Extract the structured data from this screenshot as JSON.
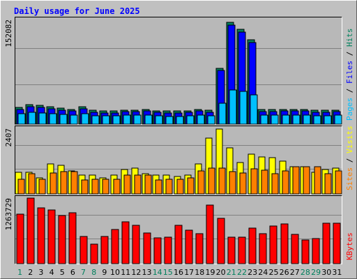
{
  "chart_data": {
    "type": "bar",
    "title": "Daily usage for June 2025",
    "days": [
      1,
      2,
      3,
      4,
      5,
      6,
      7,
      8,
      9,
      10,
      11,
      12,
      13,
      14,
      15,
      16,
      17,
      18,
      19,
      20,
      21,
      22,
      23,
      24,
      25,
      26,
      27,
      28,
      29,
      30,
      31
    ],
    "weekend_days": [
      1,
      7,
      8,
      14,
      15,
      21,
      22,
      28,
      29
    ],
    "colors": {
      "frame_bg": "#c0c0c0",
      "plot_bg": "#b8b8b8",
      "title": "#0000ff",
      "grid": "#808080",
      "weekday_tick": "#000000",
      "weekend_tick": "#00805c",
      "hits": "#00805c",
      "files": "#0000ff",
      "pages": "#00c0ff",
      "visits": "#ffff00",
      "sites": "#ff8000",
      "kbytes": "#ff0000"
    },
    "panels": [
      {
        "id": "hits",
        "max_label": "152082",
        "ymax": 152082,
        "series_labels": [
          "Pages",
          "Files",
          "Hits"
        ],
        "series_colors": [
          "#00c0ff",
          "#0000ff",
          "#00805c"
        ],
        "series": [
          {
            "name": "Hits",
            "values": [
              24000,
              28500,
              27000,
              25500,
              23500,
              21500,
              25500,
              20000,
              19000,
              19000,
              20500,
              20500,
              21500,
              19500,
              19000,
              19000,
              19500,
              21500,
              20000,
              81000,
              148000,
              138000,
              123000,
              21000,
              21000,
              21500,
              21500,
              21500,
              20000,
              20000,
              20500
            ]
          },
          {
            "name": "Files",
            "values": [
              21000,
              25500,
              24000,
              22500,
              20500,
              19000,
              22000,
              17500,
              16500,
              16500,
              18000,
              18000,
              19000,
              17000,
              16500,
              16500,
              17000,
              19000,
              17500,
              78000,
              144000,
              134000,
              119000,
              18500,
              18500,
              19000,
              19000,
              19000,
              17500,
              17500,
              18000
            ]
          },
          {
            "name": "Pages",
            "values": [
              15000,
              17000,
              16500,
              15500,
              14500,
              13500,
              15000,
              12500,
              12000,
              12000,
              13000,
              13000,
              13500,
              12000,
              11500,
              11500,
              12000,
              13500,
              12500,
              30000,
              50000,
              48000,
              43000,
              13000,
              13000,
              13500,
              13500,
              13500,
              12500,
              12500,
              13000
            ]
          }
        ]
      },
      {
        "id": "visits",
        "max_label": "2407",
        "ymax": 2407,
        "series_labels": [
          "Sites",
          "Visits"
        ],
        "series_colors": [
          "#ff8000",
          "#ffff00"
        ],
        "series": [
          {
            "name": "Visits",
            "values": [
              800,
              800,
              600,
              1100,
              1050,
              850,
              700,
              700,
              600,
              700,
              900,
              950,
              750,
              700,
              700,
              650,
              700,
              1100,
              2050,
              2370,
              1700,
              1150,
              1450,
              1350,
              1325,
              1200,
              1000,
              1000,
              800,
              900,
              950
            ]
          },
          {
            "name": "Sites",
            "values": [
              550,
              750,
              525,
              775,
              825,
              825,
              500,
              525,
              550,
              550,
              700,
              700,
              700,
              500,
              525,
              550,
              600,
              850,
              950,
              950,
              825,
              775,
              925,
              875,
              750,
              850,
              1000,
              1000,
              1000,
              750,
              850
            ]
          }
        ]
      },
      {
        "id": "kbytes",
        "max_label": "1263729",
        "ymax": 1263729,
        "series_labels": [
          "KBytes"
        ],
        "series_colors": [
          "#ff0000"
        ],
        "series": [
          {
            "name": "KBytes",
            "values": [
              960000,
              1263729,
              1080000,
              1040000,
              932000,
              975000,
              530000,
              380000,
              520000,
              660000,
              800000,
              740000,
              585000,
              497000,
              508000,
              745000,
              650000,
              572000,
              1132000,
              875000,
              505000,
              505000,
              682000,
              577000,
              720000,
              770000,
              565000,
              460000,
              480000,
              780000,
              780000
            ]
          }
        ]
      }
    ]
  }
}
